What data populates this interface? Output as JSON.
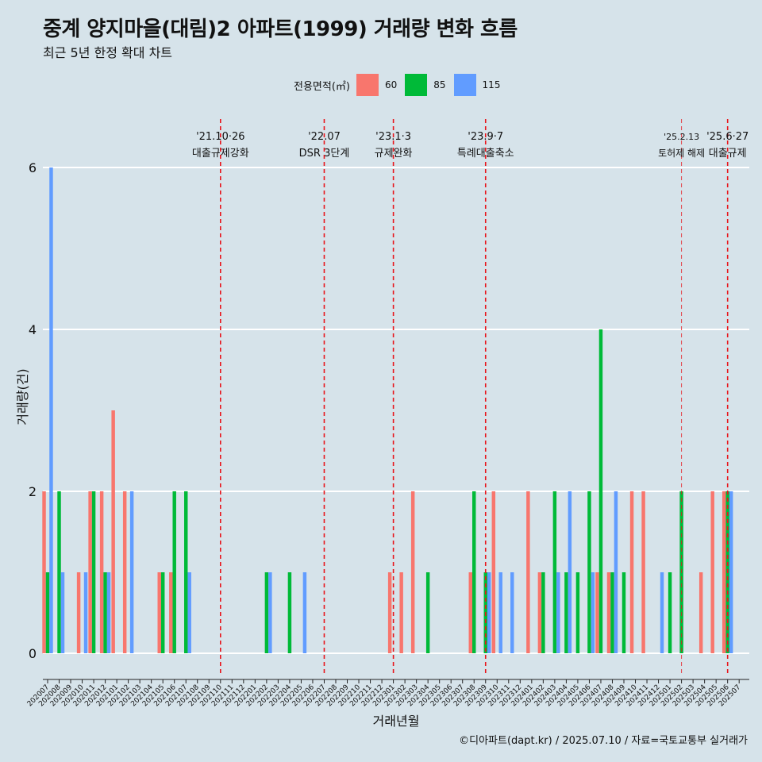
{
  "title": "중계 양지마을(대림)2 아파트(1999) 거래량 변화 흐름",
  "subtitle": "최근 5년 한정 확대 차트",
  "legend_title": "전용면적(㎡)",
  "caption": "©디아파트(dapt.kr) / 2025.07.10 / 자료=국토교통부 실거래가",
  "colors": {
    "60": "#f8766d",
    "85": "#00ba38",
    "115": "#619cff",
    "event_line": "#e8141a",
    "background": "#d6e3ea",
    "grid": "#ffffff"
  },
  "chart_data": {
    "type": "bar",
    "xlabel": "거래년월",
    "ylabel": "거래량(건)",
    "ylim": [
      0,
      6
    ],
    "yticks": [
      0,
      2,
      4,
      6
    ],
    "grid": true,
    "legend_position": "top",
    "categories": [
      "202007",
      "202008",
      "202009",
      "202010",
      "202011",
      "202012",
      "202101",
      "202102",
      "202103",
      "202104",
      "202105",
      "202106",
      "202107",
      "202108",
      "202109",
      "202110",
      "202111",
      "202112",
      "202201",
      "202202",
      "202203",
      "202204",
      "202205",
      "202206",
      "202207",
      "202208",
      "202209",
      "202210",
      "202211",
      "202212",
      "202301",
      "202302",
      "202303",
      "202304",
      "202305",
      "202306",
      "202307",
      "202308",
      "202309",
      "202310",
      "202311",
      "202312",
      "202401",
      "202402",
      "202403",
      "202404",
      "202405",
      "202406",
      "202407",
      "202408",
      "202409",
      "202410",
      "202411",
      "202412",
      "202501",
      "202502",
      "202503",
      "202504",
      "202505",
      "202506",
      "202507"
    ],
    "series": [
      {
        "name": "60",
        "values": [
          2,
          0,
          0,
          1,
          2,
          2,
          3,
          2,
          0,
          0,
          1,
          1,
          0,
          0,
          0,
          0,
          0,
          0,
          0,
          0,
          0,
          0,
          0,
          0,
          0,
          0,
          0,
          0,
          0,
          0,
          1,
          1,
          2,
          0,
          0,
          0,
          0,
          1,
          0,
          2,
          0,
          0,
          2,
          1,
          0,
          0,
          0,
          0,
          1,
          1,
          0,
          2,
          2,
          0,
          0,
          0,
          0,
          1,
          2,
          2,
          0
        ]
      },
      {
        "name": "85",
        "values": [
          1,
          2,
          0,
          0,
          2,
          1,
          0,
          0,
          0,
          0,
          1,
          2,
          2,
          0,
          0,
          0,
          0,
          0,
          0,
          1,
          0,
          1,
          0,
          0,
          0,
          0,
          0,
          0,
          0,
          0,
          0,
          0,
          0,
          1,
          0,
          0,
          0,
          2,
          1,
          0,
          0,
          0,
          0,
          1,
          2,
          1,
          1,
          2,
          4,
          1,
          1,
          0,
          0,
          0,
          1,
          2,
          0,
          0,
          0,
          2,
          0
        ]
      },
      {
        "name": "115",
        "values": [
          6,
          1,
          0,
          1,
          0,
          1,
          0,
          2,
          0,
          0,
          0,
          0,
          1,
          0,
          0,
          0,
          0,
          0,
          0,
          1,
          0,
          0,
          1,
          0,
          0,
          0,
          0,
          0,
          0,
          0,
          0,
          0,
          0,
          0,
          0,
          0,
          0,
          0,
          1,
          1,
          1,
          0,
          0,
          0,
          1,
          2,
          0,
          1,
          0,
          2,
          0,
          0,
          0,
          1,
          0,
          0,
          0,
          0,
          0,
          2,
          0
        ]
      }
    ],
    "events": [
      {
        "month": "202110",
        "date": "'21.10·26",
        "label": "대출규제강화"
      },
      {
        "month": "202207",
        "date": "'22.07",
        "label": "DSR 3단계"
      },
      {
        "month": "202301",
        "date": "'23.1·3",
        "label": "규제완화"
      },
      {
        "month": "202309",
        "date": "'23.9·7",
        "label": "특례대출축소"
      },
      {
        "month": "202502",
        "date": "'25.2.13",
        "label": "토허제 해제"
      },
      {
        "month": "202506",
        "date": "'25.6·27",
        "label": "대출규제"
      }
    ]
  }
}
